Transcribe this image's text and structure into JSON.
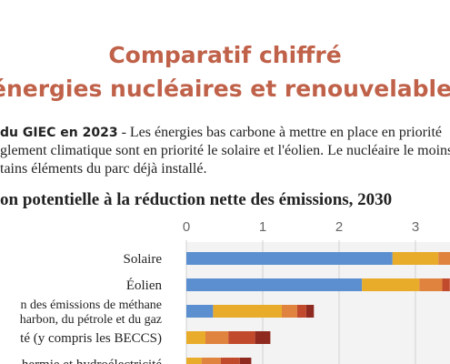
{
  "header": {
    "title_line1": "Comparatif chiffré",
    "title_line2": "énergies nucléaires et renouvelables"
  },
  "intro": {
    "lead": "du GIEC en 2023",
    "line1": " - Les énergies bas carbone à mettre en place en priorité",
    "line2": "glement climatique sont en priorité le solaire et l'éolien. Le nucléaire le moins",
    "line3": "tains éléments du parc déjà installé."
  },
  "chart_data": {
    "type": "bar",
    "orientation": "horizontal",
    "stacked": true,
    "subtitle": "on potentielle à la réduction nette des émissions, 2030",
    "xlim": [
      0,
      3.5
    ],
    "x_ticks": [
      0,
      1,
      2,
      3
    ],
    "grid": true,
    "categories": [
      [
        "Solaire"
      ],
      [
        "Éolien"
      ],
      [
        "n des émissions de méthane",
        "harbon, du pétrole et du gaz"
      ],
      [
        "té (y compris les BECCS)"
      ],
      [
        "hermie et hydroélectricité"
      ]
    ],
    "series": [
      {
        "color": "#5b8fd0",
        "values": [
          2.7,
          2.3,
          0.35,
          0.0,
          0.0
        ]
      },
      {
        "color": "#e8ac2a",
        "values": [
          0.6,
          0.75,
          0.9,
          0.25,
          0.2
        ]
      },
      {
        "color": "#e0833e",
        "values": [
          0.3,
          0.3,
          0.2,
          0.3,
          0.25
        ]
      },
      {
        "color": "#c24a2c",
        "values": [
          0.1,
          0.1,
          0.12,
          0.35,
          0.25
        ]
      },
      {
        "color": "#8f2a20",
        "values": [
          0.0,
          0.0,
          0.1,
          0.2,
          0.15
        ]
      }
    ]
  }
}
